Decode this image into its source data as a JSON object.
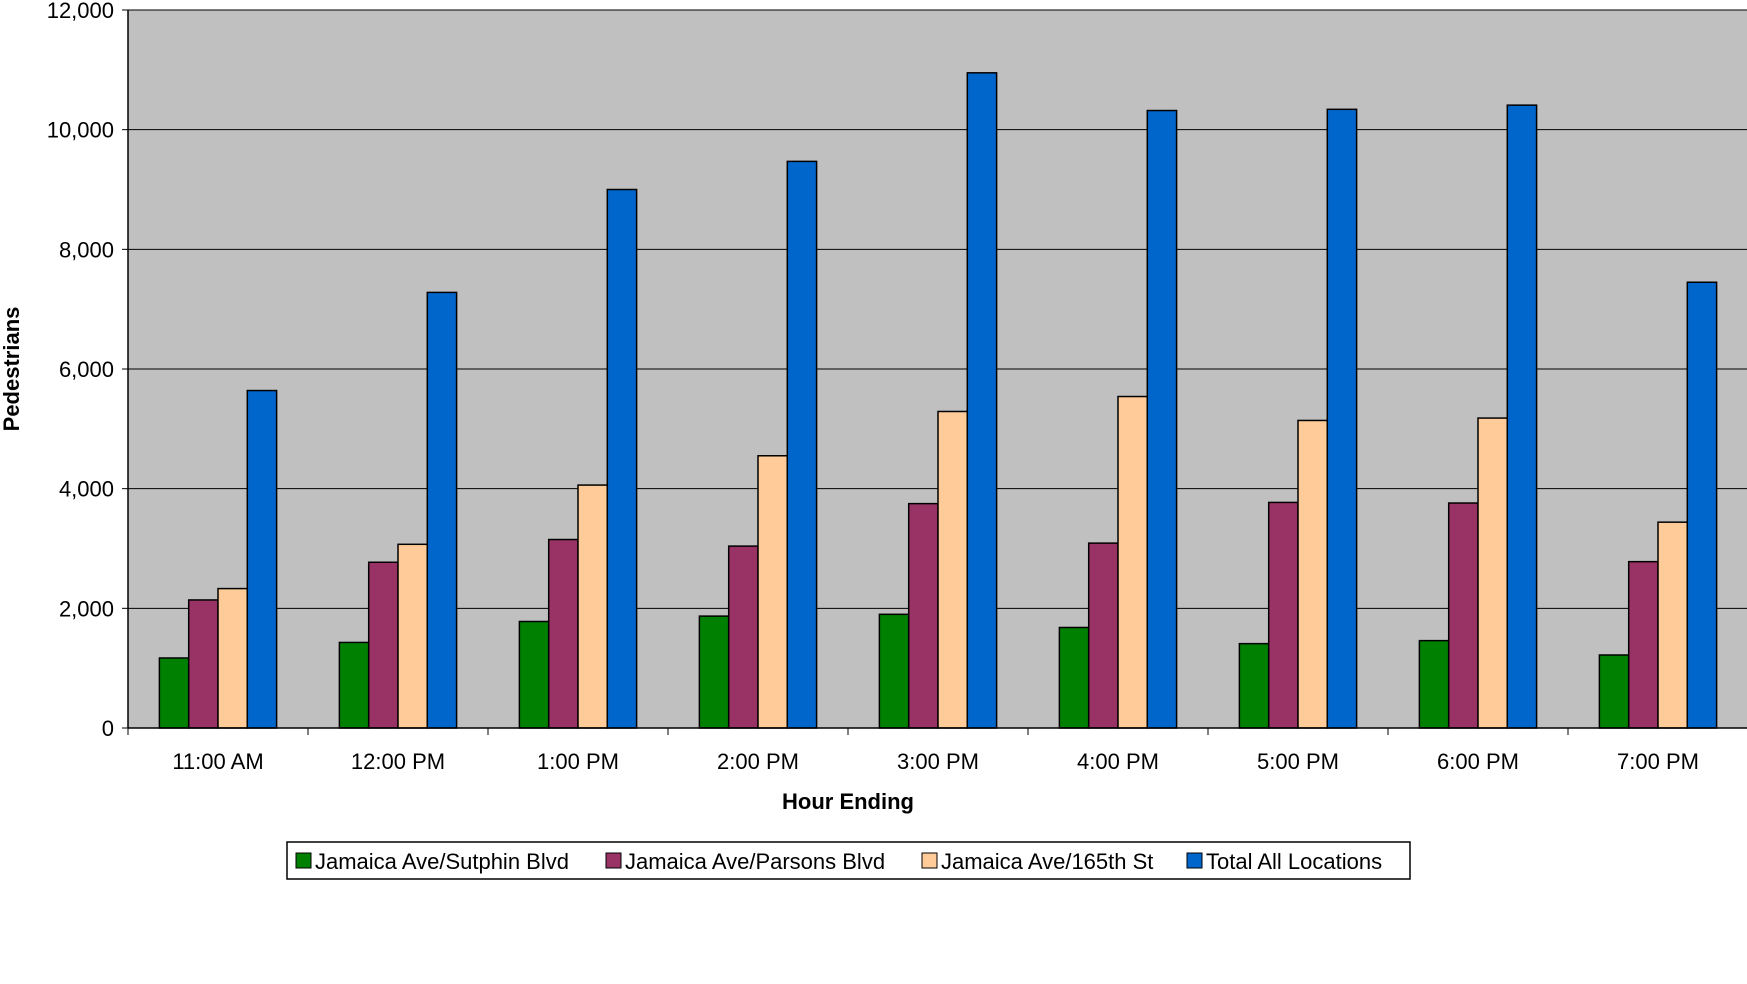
{
  "chart_data": {
    "type": "bar",
    "title": "",
    "xlabel": "Hour Ending",
    "ylabel": "Pedestrians",
    "categories": [
      "11:00 AM",
      "12:00 PM",
      "1:00 PM",
      "2:00 PM",
      "3:00 PM",
      "4:00 PM",
      "5:00 PM",
      "6:00 PM",
      "7:00 PM"
    ],
    "ylim": [
      0,
      12000
    ],
    "yticks": [
      0,
      2000,
      4000,
      6000,
      8000,
      10000,
      12000
    ],
    "ytick_labels": [
      "0",
      "2,000",
      "4,000",
      "6,000",
      "8,000",
      "10,000",
      "12,000"
    ],
    "grid": true,
    "legend_position": "bottom",
    "plot_background": "#c0c0c0",
    "series": [
      {
        "name": "Jamaica Ave/Sutphin Blvd",
        "color": "#008000",
        "values": [
          1170,
          1430,
          1780,
          1870,
          1900,
          1680,
          1410,
          1460,
          1220
        ]
      },
      {
        "name": "Jamaica Ave/Parsons Blvd",
        "color": "#993366",
        "values": [
          2140,
          2770,
          3150,
          3040,
          3750,
          3090,
          3770,
          3760,
          2780
        ]
      },
      {
        "name": "Jamaica Ave/165th St",
        "color": "#ffcc99",
        "values": [
          2330,
          3070,
          4060,
          4550,
          5290,
          5540,
          5140,
          5180,
          3440
        ]
      },
      {
        "name": "Total All Locations",
        "color": "#0066cc",
        "values": [
          5640,
          7280,
          9000,
          9470,
          10950,
          10320,
          10340,
          10410,
          7450
        ]
      }
    ]
  }
}
